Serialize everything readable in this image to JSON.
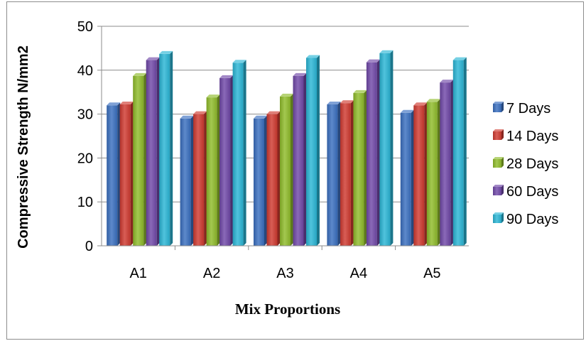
{
  "chart_data": {
    "type": "bar",
    "categories": [
      "A1",
      "A2",
      "A3",
      "A4",
      "A5"
    ],
    "series": [
      {
        "name": "7 Days",
        "values": [
          32,
          29,
          29,
          32.2,
          30.3
        ]
      },
      {
        "name": "14 Days",
        "values": [
          32.2,
          30,
          30,
          32.5,
          32
        ]
      },
      {
        "name": "28 Days",
        "values": [
          38.7,
          33.8,
          34,
          34.8,
          32.8
        ]
      },
      {
        "name": "60 Days",
        "values": [
          42.3,
          38.2,
          38.7,
          41.8,
          37.2
        ]
      },
      {
        "name": "90 Days",
        "values": [
          43.7,
          41.7,
          42.8,
          43.9,
          42.3
        ]
      }
    ],
    "title": "",
    "xlabel": "Mix Proportions",
    "ylabel": "Compressive Strength N/mm2",
    "ylim": [
      0,
      50
    ],
    "yticks": [
      0,
      10,
      20,
      30,
      40,
      50
    ],
    "grid": true,
    "legend_position": "right",
    "colors": [
      "#3a6fc0",
      "#d03a30",
      "#8fbc2a",
      "#7048a8",
      "#2ab6d6"
    ]
  }
}
